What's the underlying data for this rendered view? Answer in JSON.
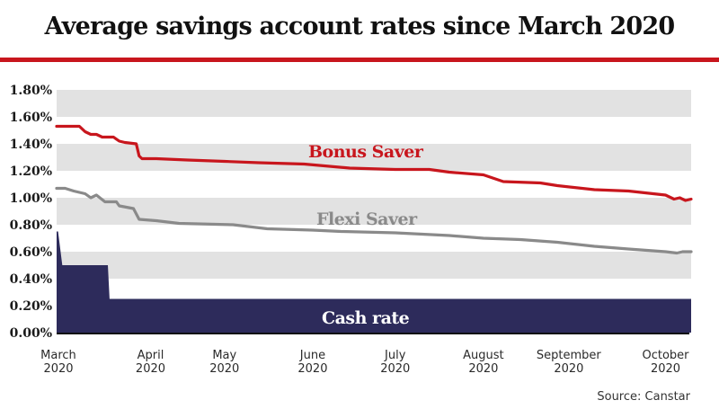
{
  "header": {
    "title": "Average savings account rates since March 2020"
  },
  "footer": {
    "source": "Source: Canstar"
  },
  "colors": {
    "bonus": "#c8161d",
    "flexi": "#8a8a8a",
    "cash": "#2d2b5b",
    "band": "#e2e2e2",
    "rule": "#c8161d"
  },
  "chart_data": {
    "type": "line",
    "title": "Average savings account rates since March 2020",
    "xlabel": "",
    "ylabel": "",
    "x_unit": "days since 1 March 2020",
    "xlim": [
      0,
      223
    ],
    "ylim": [
      0,
      1.8
    ],
    "y_ticks": [
      {
        "value": 0.0,
        "label": "0.00%"
      },
      {
        "value": 0.2,
        "label": "0.20%"
      },
      {
        "value": 0.4,
        "label": "0.40%"
      },
      {
        "value": 0.6,
        "label": "0.60%"
      },
      {
        "value": 0.8,
        "label": "0.80%"
      },
      {
        "value": 1.0,
        "label": "1.00%"
      },
      {
        "value": 1.2,
        "label": "1.20%"
      },
      {
        "value": 1.4,
        "label": "1.40%"
      },
      {
        "value": 1.6,
        "label": "1.60%"
      },
      {
        "value": 1.8,
        "label": "1.80%"
      }
    ],
    "x_ticks": [
      {
        "day": 0,
        "month": "March",
        "year": "2020"
      },
      {
        "day": 33,
        "month": "April",
        "year": "2020"
      },
      {
        "day": 59,
        "month": "May",
        "year": "2020"
      },
      {
        "day": 90,
        "month": "June",
        "year": "2020"
      },
      {
        "day": 119,
        "month": "July",
        "year": "2020"
      },
      {
        "day": 150,
        "month": "August",
        "year": "2020"
      },
      {
        "day": 180,
        "month": "September",
        "year": "2020"
      },
      {
        "day": 214,
        "month": "October",
        "year": "2020"
      }
    ],
    "grid": "alternating horizontal bands",
    "legend": "inline labels",
    "series": [
      {
        "name": "Bonus Saver",
        "label": "Bonus Saver",
        "style": "line",
        "points": [
          [
            0,
            1.53
          ],
          [
            8,
            1.53
          ],
          [
            10,
            1.49
          ],
          [
            12,
            1.47
          ],
          [
            14,
            1.47
          ],
          [
            16,
            1.45
          ],
          [
            20,
            1.45
          ],
          [
            22,
            1.42
          ],
          [
            24,
            1.41
          ],
          [
            28,
            1.4
          ],
          [
            29,
            1.31
          ],
          [
            30,
            1.29
          ],
          [
            35,
            1.29
          ],
          [
            46,
            1.28
          ],
          [
            59,
            1.27
          ],
          [
            71,
            1.26
          ],
          [
            87,
            1.25
          ],
          [
            103,
            1.22
          ],
          [
            119,
            1.21
          ],
          [
            131,
            1.21
          ],
          [
            138,
            1.19
          ],
          [
            150,
            1.17
          ],
          [
            157,
            1.12
          ],
          [
            170,
            1.11
          ],
          [
            176,
            1.09
          ],
          [
            189,
            1.06
          ],
          [
            201,
            1.05
          ],
          [
            214,
            1.02
          ],
          [
            217,
            0.99
          ],
          [
            219,
            1.0
          ],
          [
            221,
            0.98
          ],
          [
            223,
            0.99
          ]
        ]
      },
      {
        "name": "Flexi Saver",
        "label": "Flexi Saver",
        "style": "line",
        "points": [
          [
            0,
            1.07
          ],
          [
            3,
            1.07
          ],
          [
            6,
            1.05
          ],
          [
            10,
            1.03
          ],
          [
            12,
            1.0
          ],
          [
            14,
            1.02
          ],
          [
            17,
            0.97
          ],
          [
            21,
            0.97
          ],
          [
            22,
            0.94
          ],
          [
            27,
            0.92
          ],
          [
            29,
            0.84
          ],
          [
            35,
            0.83
          ],
          [
            43,
            0.81
          ],
          [
            62,
            0.8
          ],
          [
            74,
            0.77
          ],
          [
            90,
            0.76
          ],
          [
            100,
            0.75
          ],
          [
            119,
            0.74
          ],
          [
            138,
            0.72
          ],
          [
            150,
            0.7
          ],
          [
            163,
            0.69
          ],
          [
            176,
            0.67
          ],
          [
            189,
            0.64
          ],
          [
            201,
            0.62
          ],
          [
            214,
            0.6
          ],
          [
            218,
            0.59
          ],
          [
            220,
            0.6
          ],
          [
            223,
            0.6
          ]
        ]
      },
      {
        "name": "Cash rate",
        "label": "Cash rate",
        "style": "area",
        "points": [
          [
            0,
            0.75
          ],
          [
            0.5,
            0.75
          ],
          [
            2,
            0.5
          ],
          [
            18,
            0.5
          ],
          [
            18.6,
            0.25
          ],
          [
            223,
            0.25
          ]
        ]
      }
    ]
  }
}
